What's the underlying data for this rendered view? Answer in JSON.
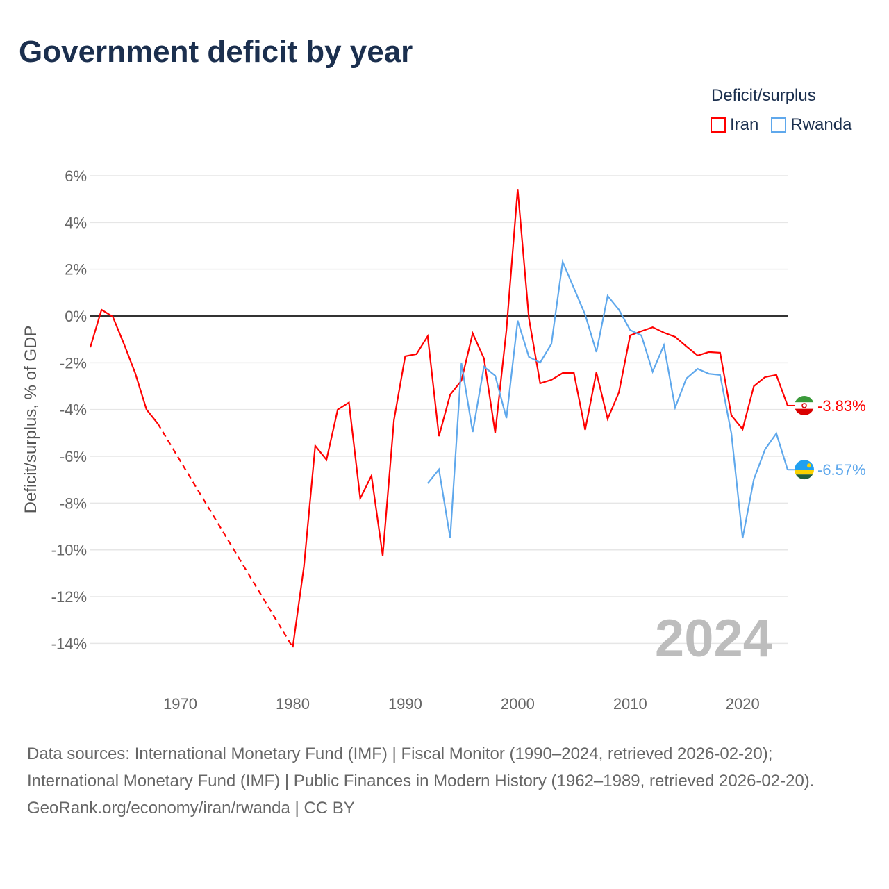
{
  "title": "Government deficit by year",
  "legend": {
    "title": "Deficit/surplus",
    "items": [
      {
        "label": "Iran",
        "color": "#ff0000"
      },
      {
        "label": "Rwanda",
        "color": "#5fa8ec"
      }
    ]
  },
  "footer": {
    "sources": "Data sources: International Monetary Fund (IMF) | Fiscal Monitor (1990–2024, retrieved 2026-02-20); International Monetary Fund (IMF) | Public Finances in Modern History (1962–1989, retrieved 2026-02-20).",
    "credit": "GeoRank.org/economy/iran/rwanda | CC BY"
  },
  "chart_data": {
    "type": "line",
    "title": "Government deficit by year",
    "xlabel": "",
    "ylabel": "Deficit/surplus, % of GDP",
    "xlim": [
      1962,
      2024
    ],
    "ylim": [
      -15,
      6.5
    ],
    "yticks": [
      6,
      4,
      2,
      0,
      -2,
      -4,
      -6,
      -8,
      -10,
      -12,
      -14
    ],
    "ytick_labels": [
      "6%",
      "4%",
      "2%",
      "0%",
      "-2%",
      "-4%",
      "-6%",
      "-8%",
      "-10%",
      "-12%",
      "-14%"
    ],
    "xticks": [
      1970,
      1980,
      1990,
      2000,
      2010,
      2020
    ],
    "xtick_labels": [
      "1970",
      "1980",
      "1990",
      "2000",
      "2010",
      "2020"
    ],
    "year_watermark": "2024",
    "grid": true,
    "legend_position": "top-right",
    "series": [
      {
        "name": "Iran",
        "color": "#ff0000",
        "end_label": "-3.83%",
        "flag": "iran-flag",
        "points": [
          [
            1962,
            -1.34
          ],
          [
            1963,
            0.27
          ],
          [
            1964,
            -0.03
          ],
          [
            1965,
            -1.2
          ],
          [
            1966,
            -2.45
          ],
          [
            1967,
            -4.0
          ],
          [
            1968,
            -4.6
          ],
          [
            1980,
            -14.17
          ],
          [
            1981,
            -10.7
          ],
          [
            1982,
            -5.55
          ],
          [
            1983,
            -6.15
          ],
          [
            1984,
            -4.0
          ],
          [
            1985,
            -3.7
          ],
          [
            1986,
            -7.8
          ],
          [
            1987,
            -6.83
          ],
          [
            1988,
            -10.25
          ],
          [
            1989,
            -4.45
          ],
          [
            1990,
            -1.72
          ],
          [
            1991,
            -1.63
          ],
          [
            1992,
            -0.86
          ],
          [
            1993,
            -5.14
          ],
          [
            1994,
            -3.36
          ],
          [
            1995,
            -2.76
          ],
          [
            1996,
            -0.74
          ],
          [
            1997,
            -1.81
          ],
          [
            1998,
            -4.99
          ],
          [
            1999,
            -0.6
          ],
          [
            2000,
            5.43
          ],
          [
            2001,
            -0.1
          ],
          [
            2002,
            -2.88
          ],
          [
            2003,
            -2.73
          ],
          [
            2004,
            -2.44
          ],
          [
            2005,
            -2.44
          ],
          [
            2006,
            -4.87
          ],
          [
            2007,
            -2.41
          ],
          [
            2008,
            -4.4
          ],
          [
            2009,
            -3.27
          ],
          [
            2010,
            -0.83
          ],
          [
            2011,
            -0.65
          ],
          [
            2012,
            -0.48
          ],
          [
            2013,
            -0.71
          ],
          [
            2014,
            -0.89
          ],
          [
            2015,
            -1.3
          ],
          [
            2016,
            -1.69
          ],
          [
            2017,
            -1.54
          ],
          [
            2018,
            -1.57
          ],
          [
            2019,
            -4.25
          ],
          [
            2020,
            -4.84
          ],
          [
            2021,
            -3.0
          ],
          [
            2022,
            -2.61
          ],
          [
            2023,
            -2.52
          ],
          [
            2024,
            -3.83
          ]
        ],
        "gap_after": 1968
      },
      {
        "name": "Rwanda",
        "color": "#5fa8ec",
        "end_label": "-6.57%",
        "flag": "rwanda-flag",
        "points": [
          [
            1992,
            -7.16
          ],
          [
            1993,
            -6.56
          ],
          [
            1994,
            -9.5
          ],
          [
            1995,
            -2.02
          ],
          [
            1996,
            -4.96
          ],
          [
            1997,
            -2.17
          ],
          [
            1998,
            -2.55
          ],
          [
            1999,
            -4.37
          ],
          [
            2000,
            -0.2
          ],
          [
            2001,
            -1.75
          ],
          [
            2002,
            -1.99
          ],
          [
            2003,
            -1.19
          ],
          [
            2004,
            2.32
          ],
          [
            2005,
            1.19
          ],
          [
            2006,
            0.06
          ],
          [
            2007,
            -1.54
          ],
          [
            2008,
            0.86
          ],
          [
            2009,
            0.27
          ],
          [
            2010,
            -0.6
          ],
          [
            2011,
            -0.83
          ],
          [
            2012,
            -2.38
          ],
          [
            2013,
            -1.25
          ],
          [
            2014,
            -3.92
          ],
          [
            2015,
            -2.67
          ],
          [
            2016,
            -2.26
          ],
          [
            2017,
            -2.47
          ],
          [
            2018,
            -2.52
          ],
          [
            2019,
            -5.02
          ],
          [
            2020,
            -9.5
          ],
          [
            2021,
            -6.98
          ],
          [
            2022,
            -5.7
          ],
          [
            2023,
            -5.02
          ],
          [
            2024,
            -6.57
          ]
        ]
      }
    ]
  }
}
